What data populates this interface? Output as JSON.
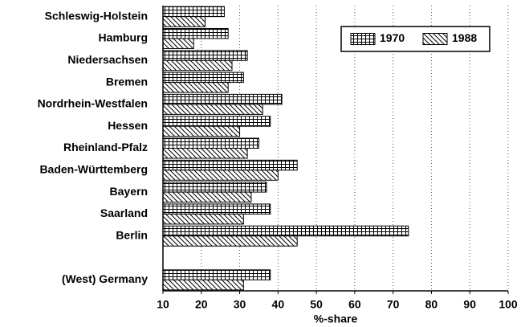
{
  "chart_data": {
    "type": "bar",
    "orientation": "horizontal",
    "categories": [
      "Schleswig-Holstein",
      "Hamburg",
      "Niedersachsen",
      "Bremen",
      "Nordrhein-Westfalen",
      "Hessen",
      "Rheinland-Pfalz",
      "Baden-Württemberg",
      "Bayern",
      "Saarland",
      "Berlin",
      null,
      "(West) Germany"
    ],
    "series": [
      {
        "name": "1970",
        "color": "#000000",
        "pattern": "grid",
        "values": [
          26,
          27,
          32,
          31,
          41,
          38,
          35,
          45,
          37,
          38,
          74,
          null,
          38
        ]
      },
      {
        "name": "1988",
        "color": "#000000",
        "pattern": "diagonal",
        "values": [
          21,
          18,
          28,
          27,
          36,
          30,
          32,
          40,
          33,
          31,
          45,
          null,
          31
        ]
      }
    ],
    "xlabel": "%-share",
    "xlim": [
      10,
      100
    ],
    "xticks": [
      10,
      20,
      30,
      40,
      50,
      60,
      70,
      80,
      90,
      100
    ],
    "grid": true,
    "legend": "upper right"
  }
}
